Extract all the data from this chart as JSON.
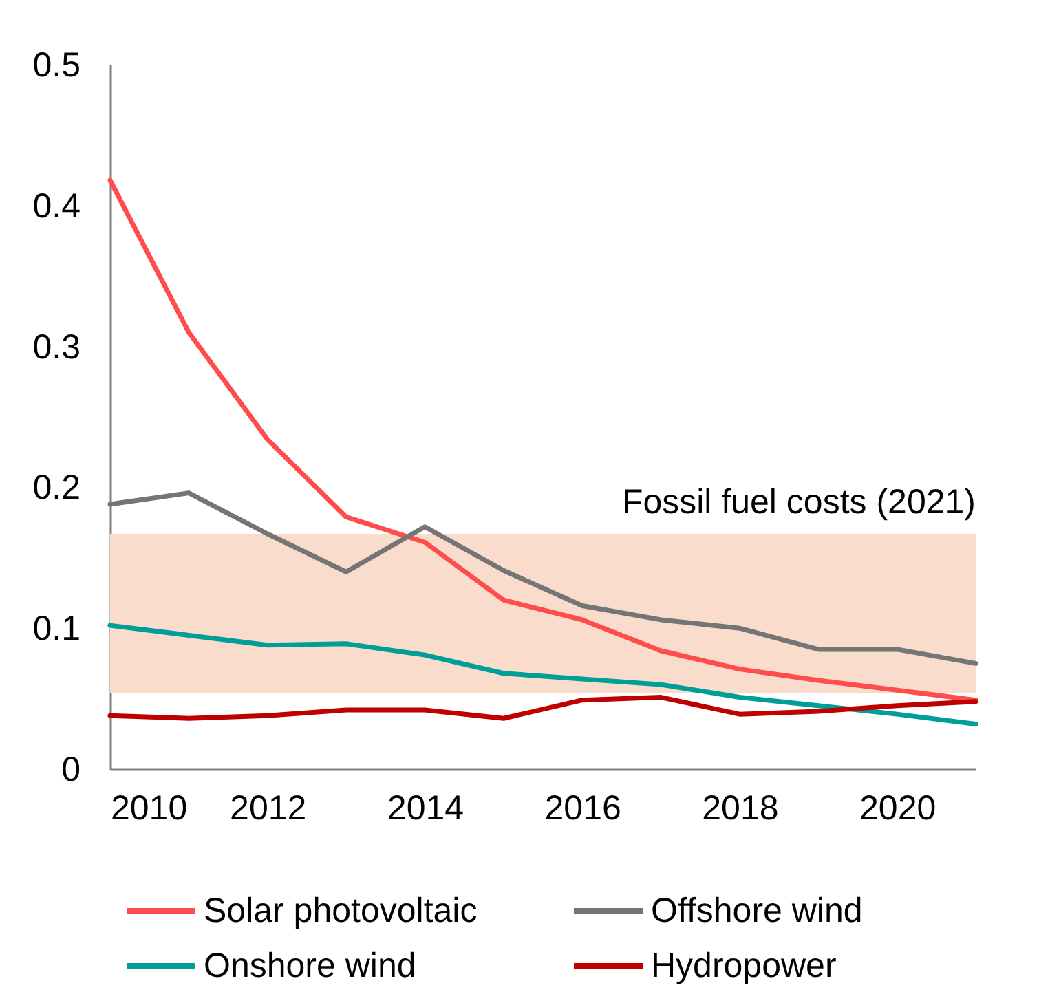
{
  "chart_data": {
    "type": "line",
    "x": [
      2010,
      2011,
      2012,
      2013,
      2014,
      2015,
      2016,
      2017,
      2018,
      2019,
      2020,
      2021
    ],
    "series": [
      {
        "name": "Solar photovoltaic",
        "color": "#ff4c4c",
        "values": [
          0.418,
          0.31,
          0.234,
          0.179,
          0.161,
          0.12,
          0.106,
          0.084,
          0.071,
          0.063,
          0.056,
          0.049
        ]
      },
      {
        "name": "Offshore wind",
        "color": "#757575",
        "values": [
          0.188,
          0.196,
          0.167,
          0.14,
          0.172,
          0.141,
          0.116,
          0.106,
          0.1,
          0.085,
          0.085,
          0.075
        ]
      },
      {
        "name": "Onshore wind",
        "color": "#009e98",
        "values": [
          0.102,
          0.095,
          0.088,
          0.089,
          0.081,
          0.068,
          0.064,
          0.06,
          0.051,
          0.045,
          0.039,
          0.032
        ]
      },
      {
        "name": "Hydropower",
        "color": "#c00000",
        "values": [
          0.038,
          0.036,
          0.038,
          0.042,
          0.042,
          0.036,
          0.049,
          0.051,
          0.039,
          0.041,
          0.045,
          0.048
        ]
      }
    ],
    "xlim": [
      2010,
      2021
    ],
    "xticks": [
      2010,
      2012,
      2014,
      2016,
      2018,
      2020
    ],
    "ylim": [
      0,
      0.5
    ],
    "yticks": [
      0,
      0.1,
      0.2,
      0.3,
      0.4,
      0.5
    ],
    "bands": [
      {
        "axis": "y",
        "from": 0.054,
        "to": 0.167,
        "label": "Fossil fuel costs (2021)",
        "color": "#f9dccb"
      }
    ],
    "grid": false,
    "legend": "bottom",
    "marker": "none",
    "line_style": "solid"
  }
}
